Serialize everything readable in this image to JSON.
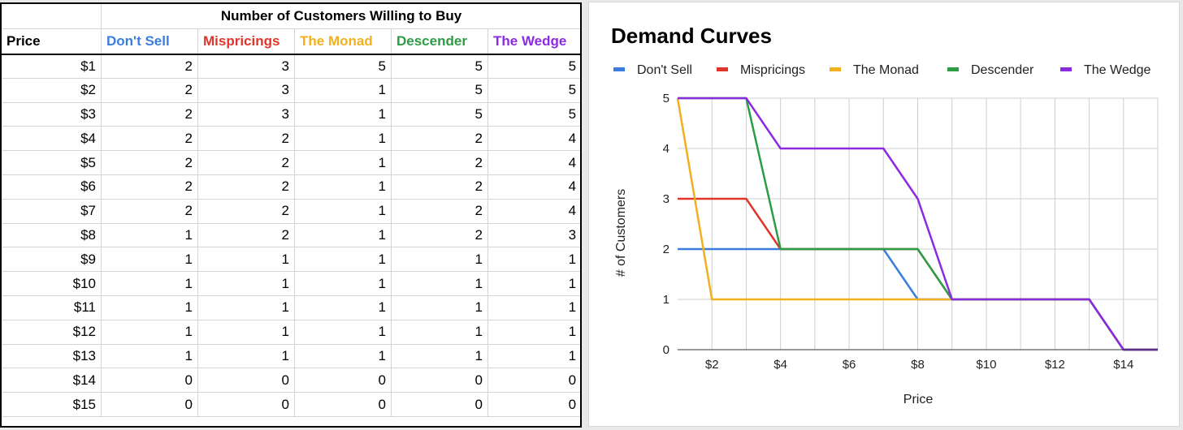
{
  "table": {
    "title": "Number of Customers Willing to Buy",
    "price_header": "Price",
    "columns": [
      {
        "label": "Don't Sell",
        "color": "#3b7ddd"
      },
      {
        "label": "Mispricings",
        "color": "#e0352b"
      },
      {
        "label": "The Monad",
        "color": "#f2b01e"
      },
      {
        "label": "Descender",
        "color": "#2a9d45"
      },
      {
        "label": "The Wedge",
        "color": "#8a2be2"
      }
    ],
    "rows": [
      {
        "price": "$1",
        "values": [
          "2",
          "3",
          "5",
          "5",
          "5"
        ]
      },
      {
        "price": "$2",
        "values": [
          "2",
          "3",
          "1",
          "5",
          "5"
        ]
      },
      {
        "price": "$3",
        "values": [
          "2",
          "3",
          "1",
          "5",
          "5"
        ]
      },
      {
        "price": "$4",
        "values": [
          "2",
          "2",
          "1",
          "2",
          "4"
        ]
      },
      {
        "price": "$5",
        "values": [
          "2",
          "2",
          "1",
          "2",
          "4"
        ]
      },
      {
        "price": "$6",
        "values": [
          "2",
          "2",
          "1",
          "2",
          "4"
        ]
      },
      {
        "price": "$7",
        "values": [
          "2",
          "2",
          "1",
          "2",
          "4"
        ]
      },
      {
        "price": "$8",
        "values": [
          "1",
          "2",
          "1",
          "2",
          "3"
        ]
      },
      {
        "price": "$9",
        "values": [
          "1",
          "1",
          "1",
          "1",
          "1"
        ]
      },
      {
        "price": "$10",
        "values": [
          "1",
          "1",
          "1",
          "1",
          "1"
        ]
      },
      {
        "price": "$11",
        "values": [
          "1",
          "1",
          "1",
          "1",
          "1"
        ]
      },
      {
        "price": "$12",
        "values": [
          "1",
          "1",
          "1",
          "1",
          "1"
        ]
      },
      {
        "price": "$13",
        "values": [
          "1",
          "1",
          "1",
          "1",
          "1"
        ]
      },
      {
        "price": "$14",
        "values": [
          "0",
          "0",
          "0",
          "0",
          "0"
        ]
      },
      {
        "price": "$15",
        "values": [
          "0",
          "0",
          "0",
          "0",
          "0"
        ]
      }
    ]
  },
  "chart_data": {
    "type": "line",
    "title": "Demand Curves",
    "xlabel": "Price",
    "ylabel": "# of Customers",
    "x": [
      1,
      2,
      3,
      4,
      5,
      6,
      7,
      8,
      9,
      10,
      11,
      12,
      13,
      14,
      15
    ],
    "xlim": [
      1,
      15
    ],
    "ylim": [
      0,
      5
    ],
    "xticks": [
      2,
      4,
      6,
      8,
      10,
      12,
      14
    ],
    "xtick_labels": [
      "$2",
      "$4",
      "$6",
      "$8",
      "$10",
      "$12",
      "$14"
    ],
    "yticks": [
      0,
      1,
      2,
      3,
      4,
      5
    ],
    "ytick_labels": [
      "0",
      "1",
      "2",
      "3",
      "4",
      "5"
    ],
    "grid": true,
    "legend_position": "top",
    "series": [
      {
        "name": "Don't Sell",
        "color": "#3b7ddd",
        "values": [
          2,
          2,
          2,
          2,
          2,
          2,
          2,
          1,
          1,
          1,
          1,
          1,
          1,
          0,
          0
        ]
      },
      {
        "name": "Mispricings",
        "color": "#e0352b",
        "values": [
          3,
          3,
          3,
          2,
          2,
          2,
          2,
          2,
          1,
          1,
          1,
          1,
          1,
          0,
          0
        ]
      },
      {
        "name": "The Monad",
        "color": "#f2b01e",
        "values": [
          5,
          1,
          1,
          1,
          1,
          1,
          1,
          1,
          1,
          1,
          1,
          1,
          1,
          0,
          0
        ]
      },
      {
        "name": "Descender",
        "color": "#2a9d45",
        "values": [
          5,
          5,
          5,
          2,
          2,
          2,
          2,
          2,
          1,
          1,
          1,
          1,
          1,
          0,
          0
        ]
      },
      {
        "name": "The Wedge",
        "color": "#8a2be2",
        "values": [
          5,
          5,
          5,
          4,
          4,
          4,
          4,
          3,
          1,
          1,
          1,
          1,
          1,
          0,
          0
        ]
      }
    ]
  }
}
